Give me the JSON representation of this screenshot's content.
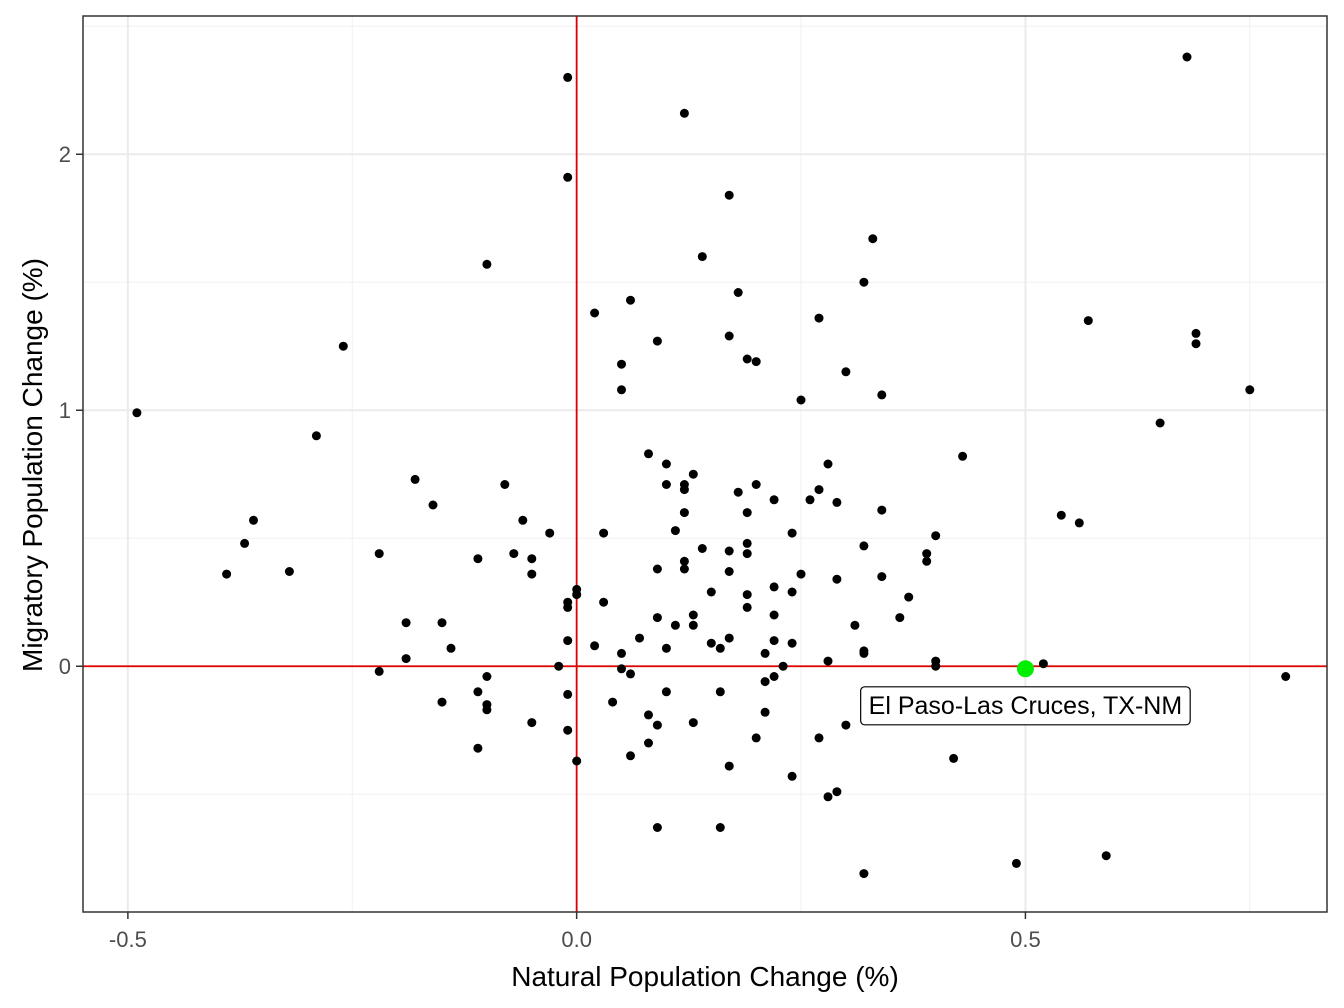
{
  "chart_data": {
    "type": "scatter",
    "xlabel": "Natural Population Change (%)",
    "ylabel": "Migratory Population Change (%)",
    "xlim": [
      -0.55,
      0.836
    ],
    "ylim": [
      -0.96,
      2.54
    ],
    "x_ticks": [
      -0.5,
      0.0,
      0.5
    ],
    "x_tick_labels": [
      "-0.5",
      "0.0",
      "0.5"
    ],
    "y_ticks": [
      0,
      1,
      2
    ],
    "y_tick_labels": [
      "0",
      "1",
      "2"
    ],
    "grid": true,
    "reference_lines": {
      "x": 0,
      "y": 0,
      "color": "#e00000"
    },
    "point_color": "#000000",
    "highlight": {
      "label": "El Paso-Las Cruces, TX-NM",
      "x": 0.5,
      "y": -0.01,
      "color": "#00ee00"
    },
    "points": [
      [
        -0.49,
        0.99
      ],
      [
        -0.39,
        0.36
      ],
      [
        -0.37,
        0.48
      ],
      [
        -0.36,
        0.57
      ],
      [
        -0.32,
        0.37
      ],
      [
        -0.29,
        0.9
      ],
      [
        -0.26,
        1.25
      ],
      [
        -0.22,
        0.44
      ],
      [
        -0.22,
        -0.02
      ],
      [
        -0.19,
        0.17
      ],
      [
        -0.19,
        0.03
      ],
      [
        -0.18,
        0.73
      ],
      [
        -0.16,
        0.63
      ],
      [
        -0.15,
        0.17
      ],
      [
        -0.15,
        -0.14
      ],
      [
        -0.14,
        0.07
      ],
      [
        -0.11,
        0.42
      ],
      [
        -0.11,
        -0.1
      ],
      [
        -0.11,
        -0.32
      ],
      [
        -0.1,
        1.57
      ],
      [
        -0.1,
        -0.04
      ],
      [
        -0.1,
        -0.15
      ],
      [
        -0.1,
        -0.17
      ],
      [
        -0.08,
        0.71
      ],
      [
        -0.07,
        0.44
      ],
      [
        -0.06,
        0.57
      ],
      [
        -0.05,
        0.42
      ],
      [
        -0.05,
        0.36
      ],
      [
        -0.05,
        -0.22
      ],
      [
        -0.03,
        0.52
      ],
      [
        -0.02,
        0.0
      ],
      [
        -0.01,
        2.3
      ],
      [
        -0.01,
        1.91
      ],
      [
        -0.01,
        0.25
      ],
      [
        -0.01,
        0.23
      ],
      [
        -0.01,
        0.1
      ],
      [
        -0.01,
        -0.11
      ],
      [
        -0.01,
        -0.25
      ],
      [
        0.0,
        0.3
      ],
      [
        0.0,
        0.28
      ],
      [
        0.0,
        -0.37
      ],
      [
        0.02,
        1.38
      ],
      [
        0.02,
        0.08
      ],
      [
        0.03,
        0.52
      ],
      [
        0.03,
        0.25
      ],
      [
        0.04,
        -0.14
      ],
      [
        0.05,
        1.18
      ],
      [
        0.05,
        1.08
      ],
      [
        0.05,
        0.05
      ],
      [
        0.05,
        -0.01
      ],
      [
        0.06,
        1.43
      ],
      [
        0.06,
        -0.03
      ],
      [
        0.06,
        -0.35
      ],
      [
        0.07,
        0.11
      ],
      [
        0.08,
        0.83
      ],
      [
        0.08,
        -0.19
      ],
      [
        0.08,
        -0.3
      ],
      [
        0.09,
        1.27
      ],
      [
        0.09,
        0.38
      ],
      [
        0.09,
        0.19
      ],
      [
        0.09,
        -0.23
      ],
      [
        0.09,
        -0.63
      ],
      [
        0.1,
        0.79
      ],
      [
        0.1,
        0.71
      ],
      [
        0.1,
        0.07
      ],
      [
        0.1,
        -0.1
      ],
      [
        0.11,
        0.53
      ],
      [
        0.11,
        0.16
      ],
      [
        0.12,
        2.16
      ],
      [
        0.12,
        0.71
      ],
      [
        0.12,
        0.69
      ],
      [
        0.12,
        0.6
      ],
      [
        0.12,
        0.41
      ],
      [
        0.12,
        0.38
      ],
      [
        0.13,
        0.75
      ],
      [
        0.13,
        0.2
      ],
      [
        0.13,
        0.16
      ],
      [
        0.13,
        -0.22
      ],
      [
        0.14,
        1.6
      ],
      [
        0.14,
        0.46
      ],
      [
        0.15,
        0.29
      ],
      [
        0.15,
        0.09
      ],
      [
        0.16,
        0.07
      ],
      [
        0.16,
        -0.1
      ],
      [
        0.16,
        -0.63
      ],
      [
        0.17,
        1.84
      ],
      [
        0.17,
        1.29
      ],
      [
        0.17,
        0.45
      ],
      [
        0.17,
        0.37
      ],
      [
        0.17,
        0.11
      ],
      [
        0.17,
        -0.39
      ],
      [
        0.18,
        1.46
      ],
      [
        0.18,
        0.68
      ],
      [
        0.19,
        1.2
      ],
      [
        0.19,
        0.6
      ],
      [
        0.19,
        0.48
      ],
      [
        0.19,
        0.44
      ],
      [
        0.19,
        0.28
      ],
      [
        0.19,
        0.23
      ],
      [
        0.2,
        1.19
      ],
      [
        0.2,
        0.71
      ],
      [
        0.2,
        -0.28
      ],
      [
        0.21,
        0.05
      ],
      [
        0.21,
        -0.06
      ],
      [
        0.21,
        -0.18
      ],
      [
        0.22,
        0.65
      ],
      [
        0.22,
        0.31
      ],
      [
        0.22,
        0.2
      ],
      [
        0.22,
        0.1
      ],
      [
        0.22,
        -0.04
      ],
      [
        0.23,
        0.0
      ],
      [
        0.24,
        0.52
      ],
      [
        0.24,
        0.29
      ],
      [
        0.24,
        0.09
      ],
      [
        0.24,
        -0.43
      ],
      [
        0.25,
        1.04
      ],
      [
        0.25,
        0.36
      ],
      [
        0.26,
        0.65
      ],
      [
        0.27,
        1.36
      ],
      [
        0.27,
        0.69
      ],
      [
        0.27,
        -0.28
      ],
      [
        0.28,
        0.79
      ],
      [
        0.28,
        0.02
      ],
      [
        0.28,
        -0.51
      ],
      [
        0.29,
        0.64
      ],
      [
        0.29,
        0.34
      ],
      [
        0.29,
        -0.49
      ],
      [
        0.3,
        1.15
      ],
      [
        0.3,
        -0.23
      ],
      [
        0.31,
        0.16
      ],
      [
        0.32,
        1.5
      ],
      [
        0.32,
        0.47
      ],
      [
        0.32,
        0.06
      ],
      [
        0.32,
        0.05
      ],
      [
        0.32,
        -0.81
      ],
      [
        0.33,
        1.67
      ],
      [
        0.34,
        1.06
      ],
      [
        0.34,
        0.61
      ],
      [
        0.34,
        0.35
      ],
      [
        0.36,
        0.19
      ],
      [
        0.37,
        0.27
      ],
      [
        0.39,
        0.44
      ],
      [
        0.39,
        0.41
      ],
      [
        0.4,
        0.51
      ],
      [
        0.4,
        0.02
      ],
      [
        0.4,
        0.0
      ],
      [
        0.42,
        -0.36
      ],
      [
        0.43,
        0.82
      ],
      [
        0.49,
        -0.77
      ],
      [
        0.52,
        0.01
      ],
      [
        0.54,
        0.59
      ],
      [
        0.56,
        0.56
      ],
      [
        0.57,
        1.35
      ],
      [
        0.59,
        -0.74
      ],
      [
        0.65,
        0.95
      ],
      [
        0.68,
        2.38
      ],
      [
        0.69,
        1.3
      ],
      [
        0.69,
        1.26
      ],
      [
        0.75,
        1.08
      ],
      [
        0.79,
        -0.04
      ]
    ]
  }
}
